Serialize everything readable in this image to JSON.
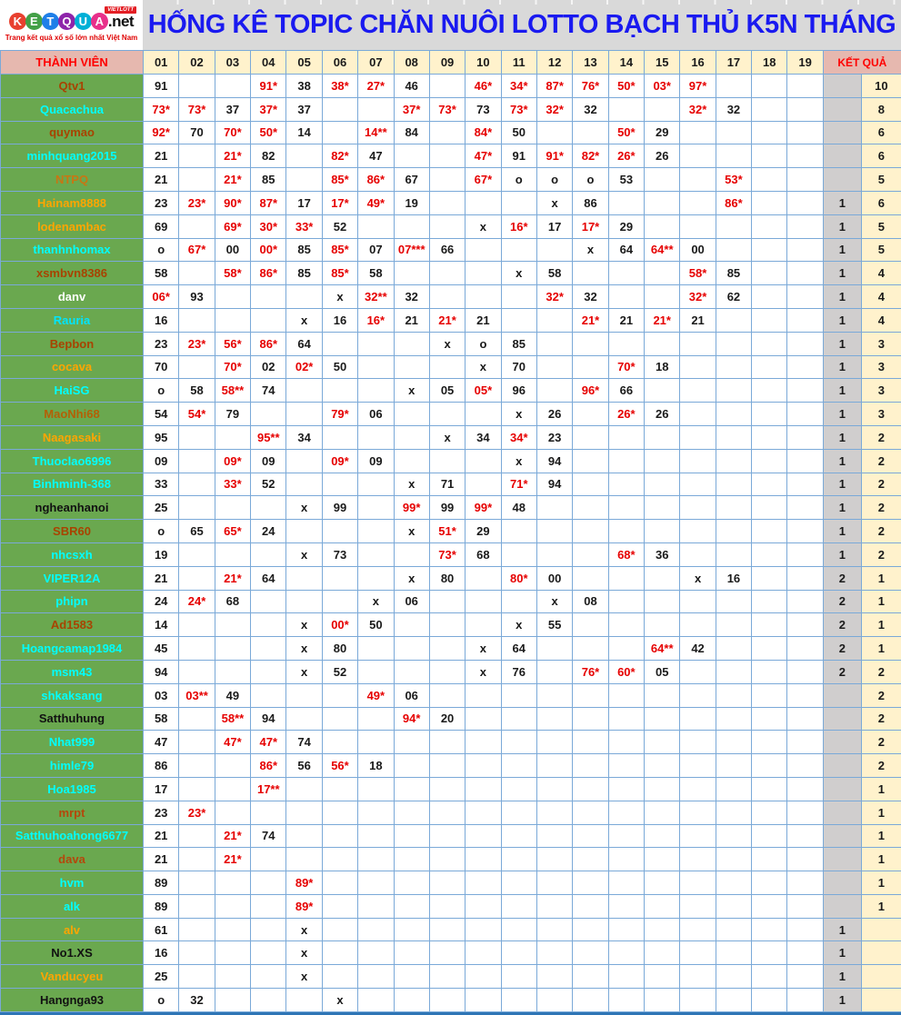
{
  "logo": {
    "letters": [
      {
        "ch": "K",
        "color": "#e8402f"
      },
      {
        "ch": "E",
        "color": "#43a047"
      },
      {
        "ch": "T",
        "color": "#1f7fe8"
      },
      {
        "ch": "Q",
        "color": "#8e24aa"
      },
      {
        "ch": "U",
        "color": "#00b0d7"
      },
      {
        "ch": "A",
        "color": "#e8308a"
      }
    ],
    "suffix": ".net",
    "badge": "VIETLOTT",
    "tagline": "Trang kết quả xổ số lớn nhất Việt Nam"
  },
  "header": {
    "title": "HỐNG KÊ TOPIC CHĂN NUÔI LOTTO BẠCH THỦ K5N THÁNG",
    "title_color": "#1a1af0"
  },
  "table": {
    "member_header": "THÀNH VIÊN",
    "result_header": "KẾT QUẢ",
    "day_columns": [
      "01",
      "02",
      "03",
      "04",
      "05",
      "06",
      "07",
      "08",
      "09",
      "10",
      "11",
      "12",
      "13",
      "14",
      "15",
      "16",
      "17",
      "18",
      "19"
    ],
    "colors": {
      "member_bg": "#6aa84f",
      "header_pink": "#e6b8af",
      "header_cream": "#fff2cc",
      "result_gray": "#d0cece",
      "hit_red": "#e60000",
      "grid_blue": "#7aa9d8"
    },
    "rows": [
      {
        "name": "Qtv1",
        "name_color": "#a84300",
        "cells": [
          "91",
          "",
          "",
          "91*",
          "38",
          "38*",
          "27*",
          "46",
          "",
          "46*",
          "34*",
          "87*",
          "76*",
          "50*",
          "03*",
          "97*",
          "",
          "",
          ""
        ],
        "kq1": "",
        "kq2": "10"
      },
      {
        "name": "Quacachua",
        "name_color": "#00ffff",
        "cells": [
          "73*",
          "73*",
          "37",
          "37*",
          "37",
          "",
          "",
          "37*",
          "73*",
          "73",
          "73*",
          "32*",
          "32",
          "",
          "",
          "32*",
          "32",
          "",
          ""
        ],
        "kq1": "",
        "kq2": "8"
      },
      {
        "name": "quymao",
        "name_color": "#a84300",
        "cells": [
          "92*",
          "70",
          "70*",
          "50*",
          "14",
          "",
          "14**",
          "84",
          "",
          "84*",
          "50",
          "",
          "",
          "50*",
          "29",
          "",
          "",
          "",
          ""
        ],
        "kq1": "",
        "kq2": "6"
      },
      {
        "name": "minhquang2015",
        "name_color": "#00ffff",
        "cells": [
          "21",
          "",
          "21*",
          "82",
          "",
          "82*",
          "47",
          "",
          "",
          "47*",
          "91",
          "91*",
          "82*",
          "26*",
          "26",
          "",
          "",
          "",
          ""
        ],
        "kq1": "",
        "kq2": "6"
      },
      {
        "name": "NTPQ",
        "name_color": "#c87613",
        "cells": [
          "21",
          "",
          "21*",
          "85",
          "",
          "85*",
          "86*",
          "67",
          "",
          "67*",
          "o",
          "o",
          "o",
          "53",
          "",
          "",
          "53*",
          "",
          ""
        ],
        "kq1": "",
        "kq2": "5"
      },
      {
        "name": "Hainam8888",
        "name_color": "#ffa500",
        "cells": [
          "23",
          "23*",
          "90*",
          "87*",
          "17",
          "17*",
          "49*",
          "19",
          "",
          "",
          "",
          "x",
          "86",
          "",
          "",
          "",
          "86*",
          "",
          ""
        ],
        "kq1": "1",
        "kq2": "6"
      },
      {
        "name": "lodenambac",
        "name_color": "#ffa500",
        "cells": [
          "69",
          "",
          "69*",
          "30*",
          "33*",
          "52",
          "",
          "",
          "",
          "x",
          "16*",
          "17",
          "17*",
          "29",
          "",
          "",
          "",
          "",
          ""
        ],
        "kq1": "1",
        "kq2": "5"
      },
      {
        "name": "thanhnhomax",
        "name_color": "#00ffff",
        "cells": [
          "o",
          "67*",
          "00",
          "00*",
          "85",
          "85*",
          "07",
          "07***",
          "66",
          "",
          "",
          "",
          "x",
          "64",
          "64**",
          "00",
          "",
          "",
          ""
        ],
        "kq1": "1",
        "kq2": "5"
      },
      {
        "name": "xsmbvn8386",
        "name_color": "#a84300",
        "cells": [
          "58",
          "",
          "58*",
          "86*",
          "85",
          "85*",
          "58",
          "",
          "",
          "",
          "x",
          "58",
          "",
          "",
          "",
          "58*",
          "85",
          "",
          ""
        ],
        "kq1": "1",
        "kq2": "4"
      },
      {
        "name": "danv",
        "name_color": "#ffffff",
        "cells": [
          "06*",
          "93",
          "",
          "",
          "",
          "x",
          "32**",
          "32",
          "",
          "",
          "",
          "32*",
          "32",
          "",
          "",
          "32*",
          "62",
          "",
          ""
        ],
        "kq1": "1",
        "kq2": "4"
      },
      {
        "name": "Rauria",
        "name_color": "#00e5ff",
        "cells": [
          "16",
          "",
          "",
          "",
          "x",
          "16",
          "16*",
          "21",
          "21*",
          "21",
          "",
          "",
          "21*",
          "21",
          "21*",
          "21",
          "",
          "",
          ""
        ],
        "kq1": "1",
        "kq2": "4"
      },
      {
        "name": "Bepbon",
        "name_color": "#a84300",
        "cells": [
          "23",
          "23*",
          "56*",
          "86*",
          "64",
          "",
          "",
          "",
          "x",
          "o",
          "85",
          "",
          "",
          "",
          "",
          "",
          "",
          "",
          ""
        ],
        "kq1": "1",
        "kq2": "3"
      },
      {
        "name": "cocava",
        "name_color": "#ffa500",
        "cells": [
          "70",
          "",
          "70*",
          "02",
          "02*",
          "50",
          "",
          "",
          "",
          "x",
          "70",
          "",
          "",
          "70*",
          "18",
          "",
          "",
          "",
          ""
        ],
        "kq1": "1",
        "kq2": "3"
      },
      {
        "name": "HaiSG",
        "name_color": "#00ffff",
        "cells": [
          "o",
          "58",
          "58**",
          "74",
          "",
          "",
          "",
          "x",
          "05",
          "05*",
          "96",
          "",
          "96*",
          "66",
          "",
          "",
          "",
          "",
          ""
        ],
        "kq1": "1",
        "kq2": "3"
      },
      {
        "name": "MaoNhi68",
        "name_color": "#b45f06",
        "cells": [
          "54",
          "54*",
          "79",
          "",
          "",
          "79*",
          "06",
          "",
          "",
          "",
          "x",
          "26",
          "",
          "26*",
          "26",
          "",
          "",
          "",
          ""
        ],
        "kq1": "1",
        "kq2": "3"
      },
      {
        "name": "Naagasaki",
        "name_color": "#ffa500",
        "cells": [
          "95",
          "",
          "",
          "95**",
          "34",
          "",
          "",
          "",
          "x",
          "34",
          "34*",
          "23",
          "",
          "",
          "",
          "",
          "",
          "",
          ""
        ],
        "kq1": "1",
        "kq2": "2"
      },
      {
        "name": "Thuoclao6996",
        "name_color": "#00ffff",
        "cells": [
          "09",
          "",
          "09*",
          "09",
          "",
          "09*",
          "09",
          "",
          "",
          "",
          "x",
          "94",
          "",
          "",
          "",
          "",
          "",
          "",
          ""
        ],
        "kq1": "1",
        "kq2": "2"
      },
      {
        "name": "Binhminh-368",
        "name_color": "#00ffff",
        "cells": [
          "33",
          "",
          "33*",
          "52",
          "",
          "",
          "",
          "x",
          "71",
          "",
          "71*",
          "94",
          "",
          "",
          "",
          "",
          "",
          "",
          ""
        ],
        "kq1": "1",
        "kq2": "2"
      },
      {
        "name": "ngheanhanoi",
        "name_color": "#111111",
        "cells": [
          "25",
          "",
          "",
          "",
          "x",
          "99",
          "",
          "99*",
          "99",
          "99*",
          "48",
          "",
          "",
          "",
          "",
          "",
          "",
          "",
          ""
        ],
        "kq1": "1",
        "kq2": "2"
      },
      {
        "name": "SBR60",
        "name_color": "#a84300",
        "cells": [
          "o",
          "65",
          "65*",
          "24",
          "",
          "",
          "",
          "x",
          "51*",
          "29",
          "",
          "",
          "",
          "",
          "",
          "",
          "",
          "",
          ""
        ],
        "kq1": "1",
        "kq2": "2"
      },
      {
        "name": "nhcsxh",
        "name_color": "#00ffff",
        "cells": [
          "19",
          "",
          "",
          "",
          "x",
          "73",
          "",
          "",
          "73*",
          "68",
          "",
          "",
          "",
          "68*",
          "36",
          "",
          "",
          "",
          ""
        ],
        "kq1": "1",
        "kq2": "2"
      },
      {
        "name": "VIPER12A",
        "name_color": "#00ffff",
        "cells": [
          "21",
          "",
          "21*",
          "64",
          "",
          "",
          "",
          "x",
          "80",
          "",
          "80*",
          "00",
          "",
          "",
          "",
          "x",
          "16",
          "",
          ""
        ],
        "kq1": "2",
        "kq2": "1"
      },
      {
        "name": "phipn",
        "name_color": "#00ffff",
        "cells": [
          "24",
          "24*",
          "68",
          "",
          "",
          "",
          "x",
          "06",
          "",
          "",
          "",
          "x",
          "08",
          "",
          "",
          "",
          "",
          "",
          ""
        ],
        "kq1": "2",
        "kq2": "1"
      },
      {
        "name": "Ad1583",
        "name_color": "#a84300",
        "cells": [
          "14",
          "",
          "",
          "",
          "x",
          "00*",
          "50",
          "",
          "",
          "",
          "x",
          "55",
          "",
          "",
          "",
          "",
          "",
          "",
          ""
        ],
        "kq1": "2",
        "kq2": "1"
      },
      {
        "name": "Hoangcamap1984",
        "name_color": "#00ffff",
        "cells": [
          "45",
          "",
          "",
          "",
          "x",
          "80",
          "",
          "",
          "",
          "x",
          "64",
          "",
          "",
          "",
          "64**",
          "42",
          "",
          "",
          ""
        ],
        "kq1": "2",
        "kq2": "1"
      },
      {
        "name": "msm43",
        "name_color": "#00ffff",
        "cells": [
          "94",
          "",
          "",
          "",
          "x",
          "52",
          "",
          "",
          "",
          "x",
          "76",
          "",
          "76*",
          "60*",
          "05",
          "",
          "",
          "",
          ""
        ],
        "kq1": "2",
        "kq2": "2"
      },
      {
        "name": "shkaksang",
        "name_color": "#00ffff",
        "cells": [
          "03",
          "03**",
          "49",
          "",
          "",
          "",
          "49*",
          "06",
          "",
          "",
          "",
          "",
          "",
          "",
          "",
          "",
          "",
          "",
          ""
        ],
        "kq1": "",
        "kq2": "2"
      },
      {
        "name": "Satthuhung",
        "name_color": "#111111",
        "cells": [
          "58",
          "",
          "58**",
          "94",
          "",
          "",
          "",
          "94*",
          "20",
          "",
          "",
          "",
          "",
          "",
          "",
          "",
          "",
          "",
          ""
        ],
        "kq1": "",
        "kq2": "2"
      },
      {
        "name": "Nhat999",
        "name_color": "#00ffff",
        "cells": [
          "47",
          "",
          "47*",
          "47*",
          "74",
          "",
          "",
          "",
          "",
          "",
          "",
          "",
          "",
          "",
          "",
          "",
          "",
          "",
          ""
        ],
        "kq1": "",
        "kq2": "2"
      },
      {
        "name": "himle79",
        "name_color": "#00ffff",
        "cells": [
          "86",
          "",
          "",
          "86*",
          "56",
          "56*",
          "18",
          "",
          "",
          "",
          "",
          "",
          "",
          "",
          "",
          "",
          "",
          "",
          ""
        ],
        "kq1": "",
        "kq2": "2"
      },
      {
        "name": "Hoa1985",
        "name_color": "#00ffff",
        "cells": [
          "17",
          "",
          "",
          "17**",
          "",
          "",
          "",
          "",
          "",
          "",
          "",
          "",
          "",
          "",
          "",
          "",
          "",
          "",
          ""
        ],
        "kq1": "",
        "kq2": "1"
      },
      {
        "name": "mrpt",
        "name_color": "#b5470b",
        "cells": [
          "23",
          "23*",
          "",
          "",
          "",
          "",
          "",
          "",
          "",
          "",
          "",
          "",
          "",
          "",
          "",
          "",
          "",
          "",
          ""
        ],
        "kq1": "",
        "kq2": "1"
      },
      {
        "name": "Satthuhoahong6677",
        "name_color": "#00ffff",
        "cells": [
          "21",
          "",
          "21*",
          "74",
          "",
          "",
          "",
          "",
          "",
          "",
          "",
          "",
          "",
          "",
          "",
          "",
          "",
          "",
          ""
        ],
        "kq1": "",
        "kq2": "1"
      },
      {
        "name": "dava",
        "name_color": "#b5470b",
        "cells": [
          "21",
          "",
          "21*",
          "",
          "",
          "",
          "",
          "",
          "",
          "",
          "",
          "",
          "",
          "",
          "",
          "",
          "",
          "",
          ""
        ],
        "kq1": "",
        "kq2": "1"
      },
      {
        "name": "hvm",
        "name_color": "#00ffff",
        "cells": [
          "89",
          "",
          "",
          "",
          "89*",
          "",
          "",
          "",
          "",
          "",
          "",
          "",
          "",
          "",
          "",
          "",
          "",
          "",
          ""
        ],
        "kq1": "",
        "kq2": "1"
      },
      {
        "name": "alk",
        "name_color": "#00ffff",
        "cells": [
          "89",
          "",
          "",
          "",
          "89*",
          "",
          "",
          "",
          "",
          "",
          "",
          "",
          "",
          "",
          "",
          "",
          "",
          "",
          ""
        ],
        "kq1": "",
        "kq2": "1"
      },
      {
        "name": "alv",
        "name_color": "#ffa500",
        "cells": [
          "61",
          "",
          "",
          "",
          "x",
          "",
          "",
          "",
          "",
          "",
          "",
          "",
          "",
          "",
          "",
          "",
          "",
          "",
          ""
        ],
        "kq1": "1",
        "kq2": ""
      },
      {
        "name": "No1.XS",
        "name_color": "#111111",
        "cells": [
          "16",
          "",
          "",
          "",
          "x",
          "",
          "",
          "",
          "",
          "",
          "",
          "",
          "",
          "",
          "",
          "",
          "",
          "",
          ""
        ],
        "kq1": "1",
        "kq2": ""
      },
      {
        "name": "Vanducyeu",
        "name_color": "#ffa500",
        "cells": [
          "25",
          "",
          "",
          "",
          "x",
          "",
          "",
          "",
          "",
          "",
          "",
          "",
          "",
          "",
          "",
          "",
          "",
          "",
          ""
        ],
        "kq1": "1",
        "kq2": ""
      },
      {
        "name": "Hangnga93",
        "name_color": "#111111",
        "cells": [
          "o",
          "32",
          "",
          "",
          "",
          "x",
          "",
          "",
          "",
          "",
          "",
          "",
          "",
          "",
          "",
          "",
          "",
          "",
          ""
        ],
        "kq1": "1",
        "kq2": ""
      }
    ]
  }
}
